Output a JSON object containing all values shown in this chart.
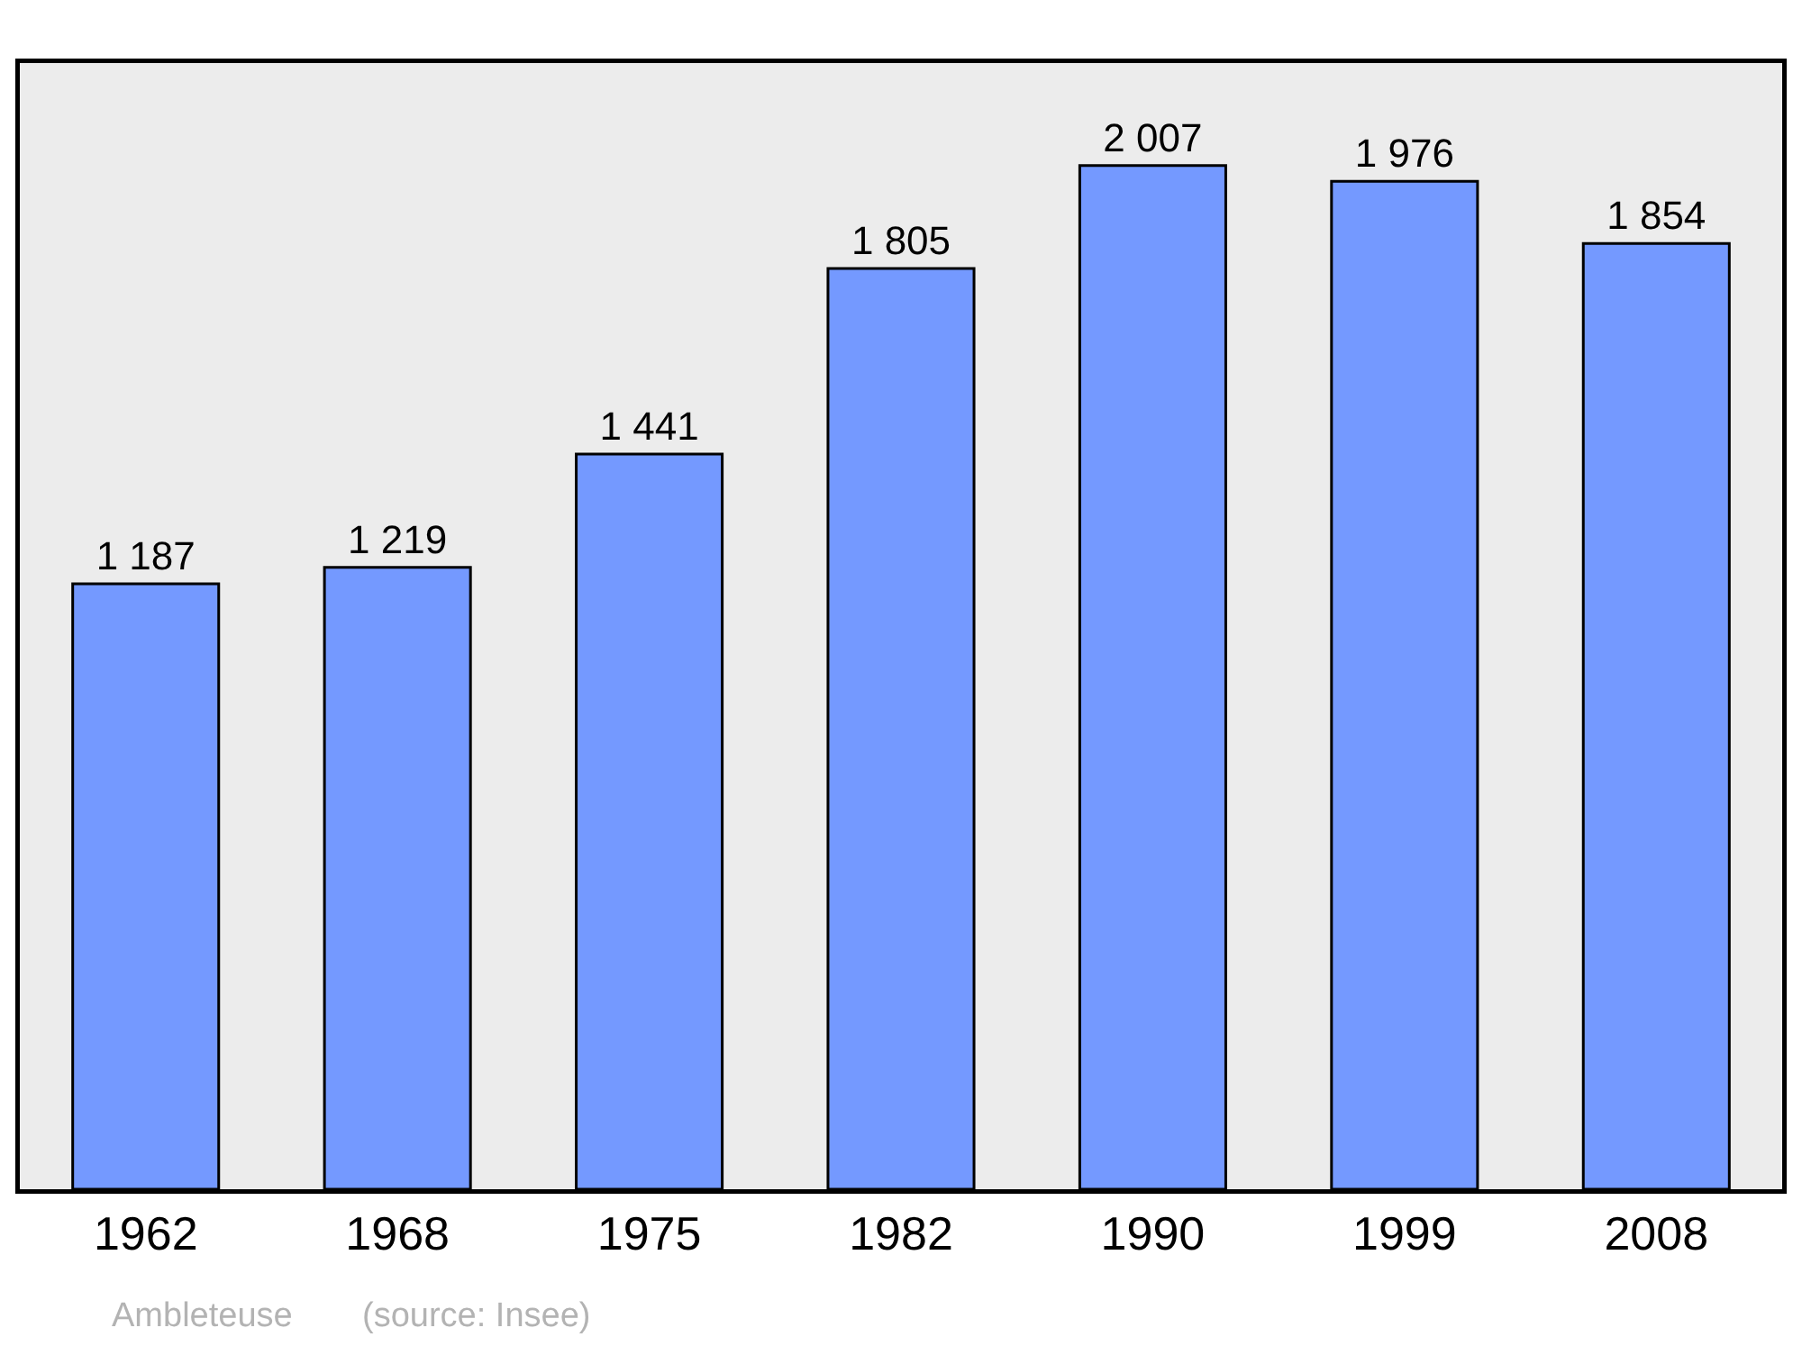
{
  "chart_data": {
    "type": "bar",
    "categories": [
      "1962",
      "1968",
      "1975",
      "1982",
      "1990",
      "1999",
      "2008"
    ],
    "values": [
      1187,
      1219,
      1441,
      1805,
      2007,
      1976,
      1854
    ],
    "value_labels": [
      "1 187",
      "1 219",
      "1 441",
      "1 805",
      "2 007",
      "1 976",
      "1 854"
    ],
    "color": "#7499ff",
    "annotations": [
      "Ambleteuse",
      "(source: Insee)"
    ]
  }
}
